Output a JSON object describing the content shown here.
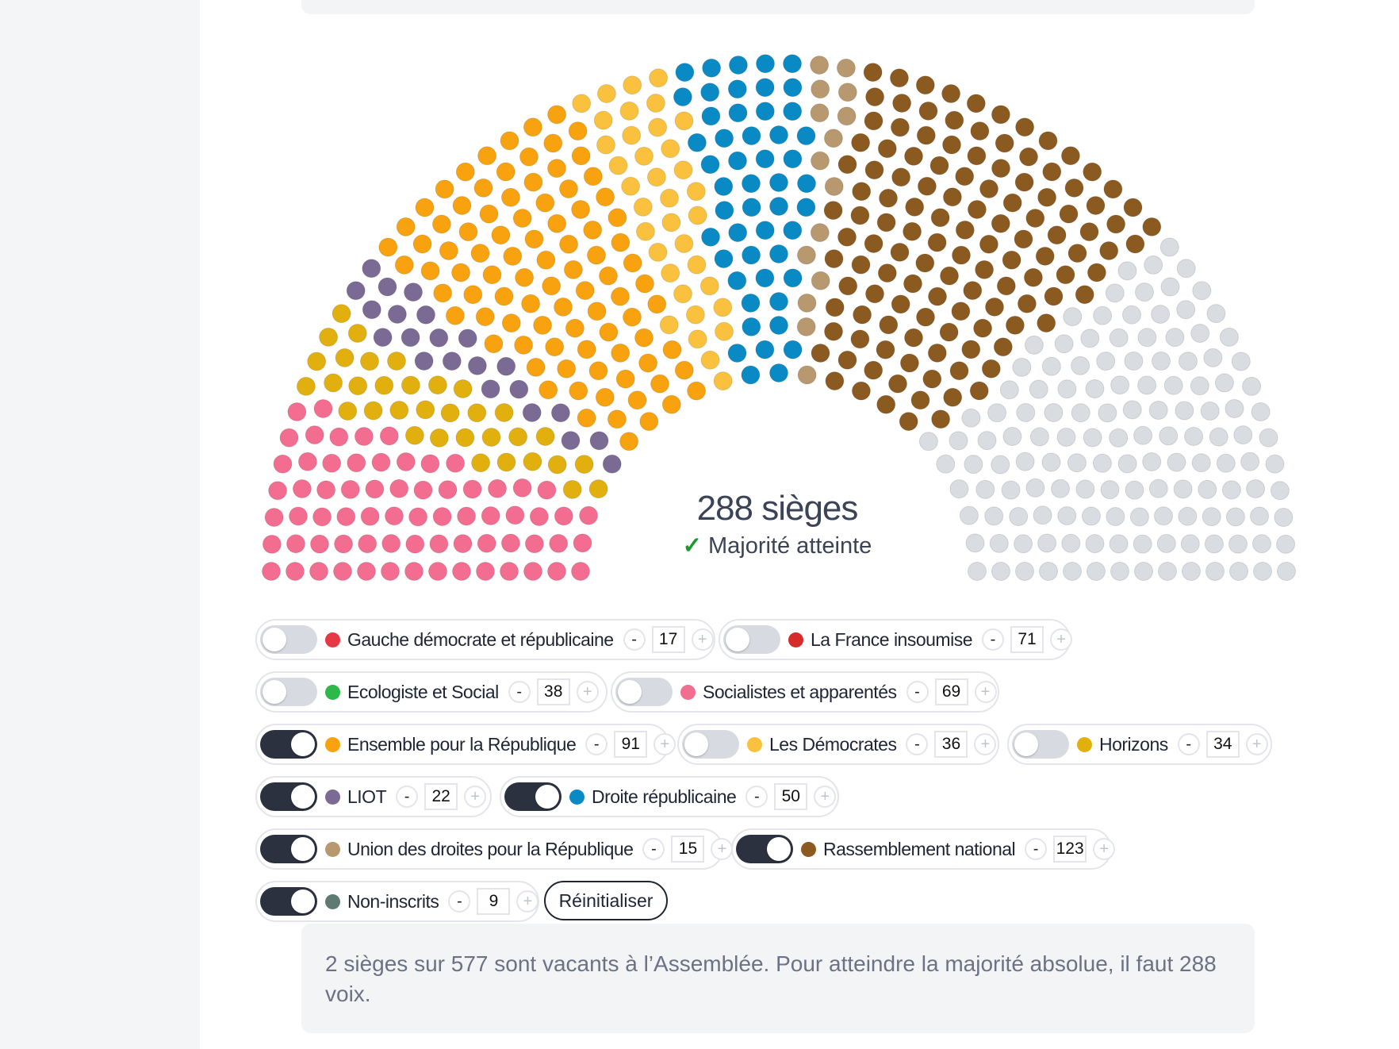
{
  "summary": {
    "seats_label": "288 sièges",
    "majority_check": "✓",
    "majority_label": "Majorité atteinte"
  },
  "colors": {
    "empty_seat": "#d9dce1",
    "toggle_on": "#2c3140",
    "toggle_off": "#d7dbe1"
  },
  "seating_order": [
    3,
    6,
    7,
    4,
    5,
    8,
    9,
    10
  ],
  "groups": [
    {
      "name": "Gauche démocrate et républicaine",
      "seats": 17,
      "seats_text": "17",
      "color": "#e63946",
      "enabled": false
    },
    {
      "name": "La France insoumise",
      "seats": 71,
      "seats_text": "71",
      "color": "#d62b2b",
      "enabled": false
    },
    {
      "name": "Ecologiste et Social",
      "seats": 38,
      "seats_text": "38",
      "color": "#2db84a",
      "enabled": false
    },
    {
      "name": "Socialistes et apparentés",
      "seats": 69,
      "seats_text": "69",
      "color": "#f26d8f",
      "enabled": false
    },
    {
      "name": "Ensemble pour la République",
      "seats": 91,
      "seats_text": "91",
      "color": "#f7a20e",
      "enabled": true
    },
    {
      "name": "Les Démocrates",
      "seats": 36,
      "seats_text": "36",
      "color": "#f9c13d",
      "enabled": false
    },
    {
      "name": "Horizons",
      "seats": 34,
      "seats_text": "34",
      "color": "#e1b00e",
      "enabled": false
    },
    {
      "name": "LIOT",
      "seats": 22,
      "seats_text": "22",
      "color": "#7a6a94",
      "enabled": true
    },
    {
      "name": "Droite républicaine",
      "seats": 50,
      "seats_text": "50",
      "color": "#0a8ac4",
      "enabled": true
    },
    {
      "name": "Union des droites pour la République",
      "seats": 15,
      "seats_text": "15",
      "color": "#b7986f",
      "enabled": true
    },
    {
      "name": "Rassemblement national",
      "seats": 123,
      "seats_text": "123",
      "color": "#8a5a20",
      "enabled": true
    },
    {
      "name": "Non-inscrits",
      "seats": 9,
      "seats_text": "9",
      "color": "#5f7a72",
      "enabled": true
    }
  ],
  "controls": {
    "minus": "-",
    "plus": "+",
    "reset_label": "Réinitialiser"
  },
  "note": "2 sièges sur 577 sont vacants à l’Assemblée. Pour atteindre la majorité absolue, il faut 288 voix."
}
